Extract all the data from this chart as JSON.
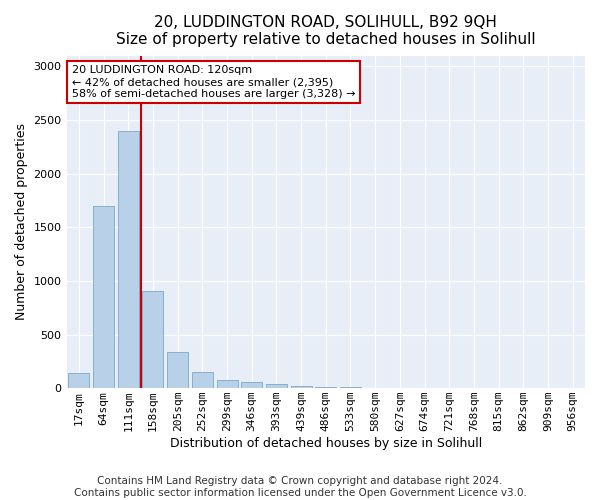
{
  "title": "20, LUDDINGTON ROAD, SOLIHULL, B92 9QH",
  "subtitle": "Size of property relative to detached houses in Solihull",
  "xlabel": "Distribution of detached houses by size in Solihull",
  "ylabel": "Number of detached properties",
  "categories": [
    "17sqm",
    "64sqm",
    "111sqm",
    "158sqm",
    "205sqm",
    "252sqm",
    "299sqm",
    "346sqm",
    "393sqm",
    "439sqm",
    "486sqm",
    "533sqm",
    "580sqm",
    "627sqm",
    "674sqm",
    "721sqm",
    "768sqm",
    "815sqm",
    "862sqm",
    "909sqm",
    "956sqm"
  ],
  "values": [
    140,
    1700,
    2395,
    910,
    340,
    155,
    80,
    55,
    40,
    20,
    10,
    10,
    5,
    0,
    0,
    0,
    0,
    0,
    0,
    0,
    0
  ],
  "bar_color": "#b8d0e8",
  "bar_edge_color": "#7aaac8",
  "property_bin_index": 2,
  "vline_color": "#cc0000",
  "annotation_text": "20 LUDDINGTON ROAD: 120sqm\n← 42% of detached houses are smaller (2,395)\n58% of semi-detached houses are larger (3,328) →",
  "annotation_box_facecolor": "#ffffff",
  "annotation_box_edgecolor": "#cc0000",
  "footer_line1": "Contains HM Land Registry data © Crown copyright and database right 2024.",
  "footer_line2": "Contains public sector information licensed under the Open Government Licence v3.0.",
  "ylim": [
    0,
    3100
  ],
  "bg_color": "#ffffff",
  "plot_bg_color": "#e8eef8",
  "grid_color": "#ffffff",
  "title_fontsize": 11,
  "xlabel_fontsize": 9,
  "ylabel_fontsize": 9,
  "footer_fontsize": 7.5,
  "tick_fontsize": 8,
  "annotation_fontsize": 8
}
